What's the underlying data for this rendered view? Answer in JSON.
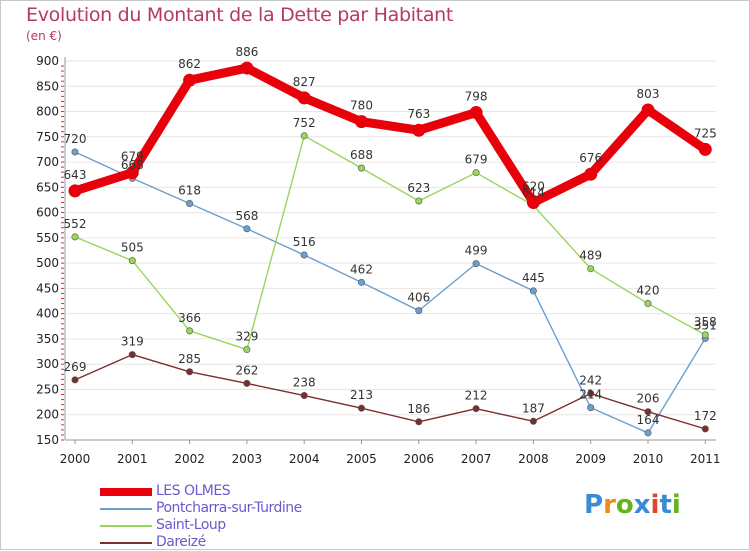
{
  "title": "Evolution du Montant de la Dette par Habitant",
  "unit_label": "(en €)",
  "logo": {
    "text": "Proxiti",
    "colors": [
      "#3a8ad4",
      "#f08a1c",
      "#66b31e",
      "#3a8ad4",
      "#e8402a",
      "#3a8ad4",
      "#66b31e"
    ]
  },
  "chart_data": {
    "type": "line",
    "title": "Evolution du Montant de la Dette par Habitant",
    "ylabel": "(en €)",
    "xlabel": "",
    "x": [
      "2000",
      "2001",
      "2002",
      "2003",
      "2004",
      "2005",
      "2006",
      "2007",
      "2008",
      "2009",
      "2010",
      "2011"
    ],
    "ylim": [
      150,
      900
    ],
    "yticks": [
      150,
      200,
      250,
      300,
      350,
      400,
      450,
      500,
      550,
      600,
      650,
      700,
      750,
      800,
      850,
      900
    ],
    "grid": "horizontal",
    "legend": "bottom-left",
    "series": [
      {
        "name": "LES OLMES",
        "color": "#e8000b",
        "emphasis": true,
        "values": [
          643,
          679,
          862,
          886,
          827,
          780,
          763,
          798,
          620,
          676,
          803,
          725
        ]
      },
      {
        "name": "Pontcharra-sur-Turdine",
        "color": "#6b9fcf",
        "emphasis": false,
        "values": [
          720,
          668,
          618,
          568,
          516,
          462,
          406,
          499,
          445,
          214,
          164,
          351
        ]
      },
      {
        "name": "Saint-Loup",
        "color": "#99d65b",
        "emphasis": false,
        "values": [
          552,
          505,
          366,
          329,
          752,
          688,
          623,
          679,
          614,
          489,
          420,
          358
        ]
      },
      {
        "name": "Dareizé",
        "color": "#7a2f2f",
        "emphasis": false,
        "values": [
          269,
          319,
          285,
          262,
          238,
          213,
          186,
          212,
          187,
          242,
          206,
          172
        ]
      }
    ]
  }
}
